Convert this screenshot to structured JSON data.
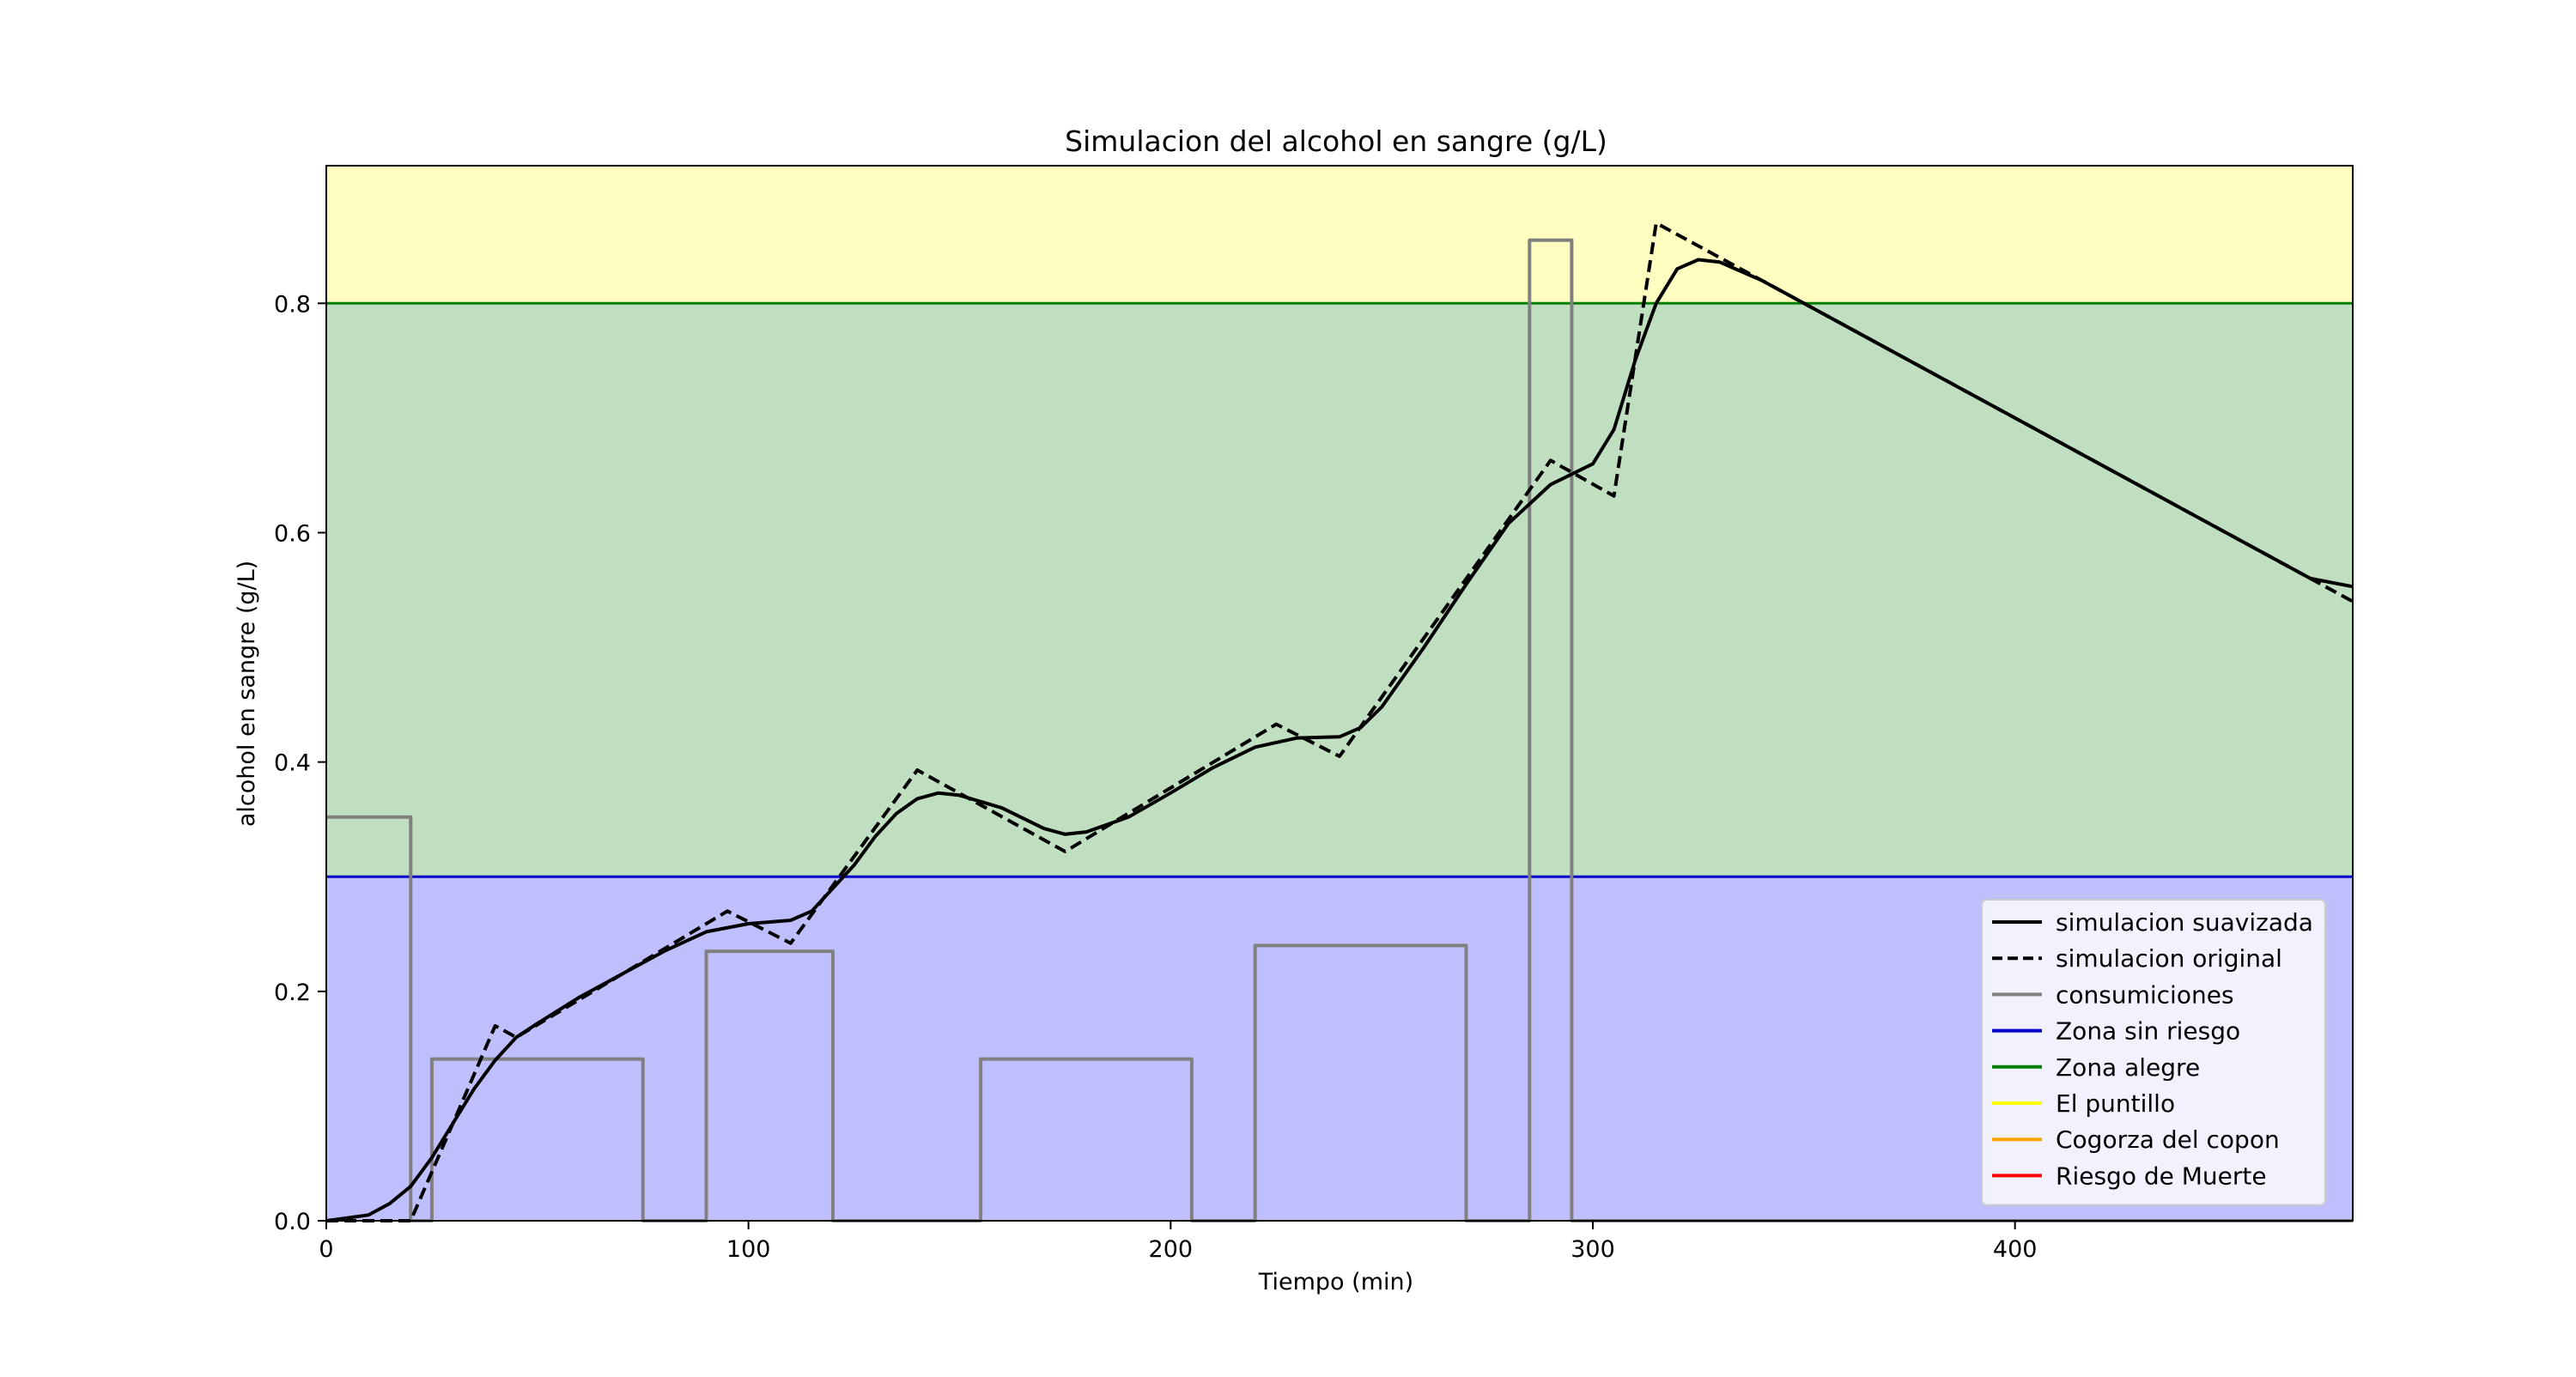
{
  "chart_data": {
    "type": "line",
    "title": "Simulacion del alcohol en sangre (g/L)",
    "xlabel": "Tiempo (min)",
    "ylabel": "alcohol en sangre (g/L)",
    "xlim": [
      0,
      480
    ],
    "ylim": [
      0,
      0.92
    ],
    "x_ticks": [
      0,
      100,
      200,
      300,
      400
    ],
    "y_ticks": [
      0.0,
      0.2,
      0.4,
      0.6,
      0.8
    ],
    "y_tick_labels": [
      "0.0",
      "0.2",
      "0.4",
      "0.6",
      "0.8"
    ],
    "grid": false,
    "legend_position": "lower right",
    "zones": [
      {
        "name": "Zona sin riesgo",
        "from": 0,
        "to": 0.3,
        "fill": "#bfbffe",
        "line": "#0000cc"
      },
      {
        "name": "Zona alegre",
        "from": 0.3,
        "to": 0.8,
        "fill": "#c0dfc0",
        "line": "#008000"
      },
      {
        "name": "El puntillo",
        "from": 0.8,
        "to": 0.92,
        "fill": "#fffec0",
        "line": null
      }
    ],
    "series": [
      {
        "name": "simulacion suavizada",
        "color": "#000000",
        "style": "solid",
        "points": [
          [
            0,
            0
          ],
          [
            10,
            0.005
          ],
          [
            15,
            0.015
          ],
          [
            20,
            0.03
          ],
          [
            25,
            0.055
          ],
          [
            30,
            0.085
          ],
          [
            35,
            0.115
          ],
          [
            40,
            0.14
          ],
          [
            45,
            0.16
          ],
          [
            50,
            0.172
          ],
          [
            60,
            0.195
          ],
          [
            70,
            0.215
          ],
          [
            80,
            0.235
          ],
          [
            90,
            0.252
          ],
          [
            100,
            0.259
          ],
          [
            110,
            0.262
          ],
          [
            115,
            0.27
          ],
          [
            120,
            0.29
          ],
          [
            125,
            0.31
          ],
          [
            130,
            0.335
          ],
          [
            135,
            0.355
          ],
          [
            140,
            0.368
          ],
          [
            145,
            0.373
          ],
          [
            150,
            0.371
          ],
          [
            160,
            0.36
          ],
          [
            170,
            0.342
          ],
          [
            175,
            0.337
          ],
          [
            180,
            0.339
          ],
          [
            190,
            0.352
          ],
          [
            200,
            0.373
          ],
          [
            210,
            0.395
          ],
          [
            220,
            0.413
          ],
          [
            230,
            0.421
          ],
          [
            240,
            0.422
          ],
          [
            245,
            0.43
          ],
          [
            250,
            0.448
          ],
          [
            260,
            0.5
          ],
          [
            270,
            0.555
          ],
          [
            280,
            0.608
          ],
          [
            290,
            0.642
          ],
          [
            300,
            0.66
          ],
          [
            305,
            0.69
          ],
          [
            310,
            0.75
          ],
          [
            315,
            0.8
          ],
          [
            320,
            0.83
          ],
          [
            325,
            0.838
          ],
          [
            330,
            0.836
          ],
          [
            340,
            0.82
          ],
          [
            350,
            0.8
          ],
          [
            400,
            0.7
          ],
          [
            450,
            0.6
          ],
          [
            470,
            0.56
          ],
          [
            480,
            0.553
          ]
        ]
      },
      {
        "name": "simulacion original",
        "color": "#000000",
        "style": "dashed",
        "points": [
          [
            0,
            0
          ],
          [
            20,
            0
          ],
          [
            40,
            0.17
          ],
          [
            45,
            0.16
          ],
          [
            95,
            0.27
          ],
          [
            110,
            0.242
          ],
          [
            140,
            0.393
          ],
          [
            175,
            0.322
          ],
          [
            225,
            0.433
          ],
          [
            240,
            0.405
          ],
          [
            290,
            0.663
          ],
          [
            305,
            0.632
          ],
          [
            315,
            0.87
          ],
          [
            470,
            0.56
          ],
          [
            480,
            0.54
          ]
        ]
      },
      {
        "name": "consumiciones",
        "color": "#808080",
        "style": "solid",
        "points": [
          [
            0,
            0.352
          ],
          [
            20,
            0.352
          ],
          [
            20,
            0
          ],
          [
            25,
            0
          ],
          [
            25,
            0.141
          ],
          [
            75,
            0.141
          ],
          [
            75,
            0
          ],
          [
            90,
            0
          ],
          [
            90,
            0.235
          ],
          [
            120,
            0.235
          ],
          [
            120,
            0
          ],
          [
            155,
            0
          ],
          [
            155,
            0.141
          ],
          [
            205,
            0.141
          ],
          [
            205,
            0
          ],
          [
            220,
            0
          ],
          [
            220,
            0.24
          ],
          [
            270,
            0.24
          ],
          [
            270,
            0
          ],
          [
            285,
            0
          ],
          [
            285,
            0.855
          ],
          [
            295,
            0.855
          ],
          [
            295,
            0
          ],
          [
            480,
            0
          ]
        ]
      }
    ],
    "legend": [
      {
        "label": "simulacion suavizada",
        "color": "#000000",
        "style": "solid"
      },
      {
        "label": "simulacion original",
        "color": "#000000",
        "style": "dashed"
      },
      {
        "label": "consumiciones",
        "color": "#808080",
        "style": "solid"
      },
      {
        "label": "Zona sin riesgo",
        "color": "#0000cc",
        "style": "solid"
      },
      {
        "label": "Zona alegre",
        "color": "#008000",
        "style": "solid"
      },
      {
        "label": "El puntillo",
        "color": "#ffff00",
        "style": "solid"
      },
      {
        "label": "Cogorza del copon",
        "color": "#ffa500",
        "style": "solid"
      },
      {
        "label": "Riesgo de Muerte",
        "color": "#ff0000",
        "style": "solid"
      }
    ]
  }
}
